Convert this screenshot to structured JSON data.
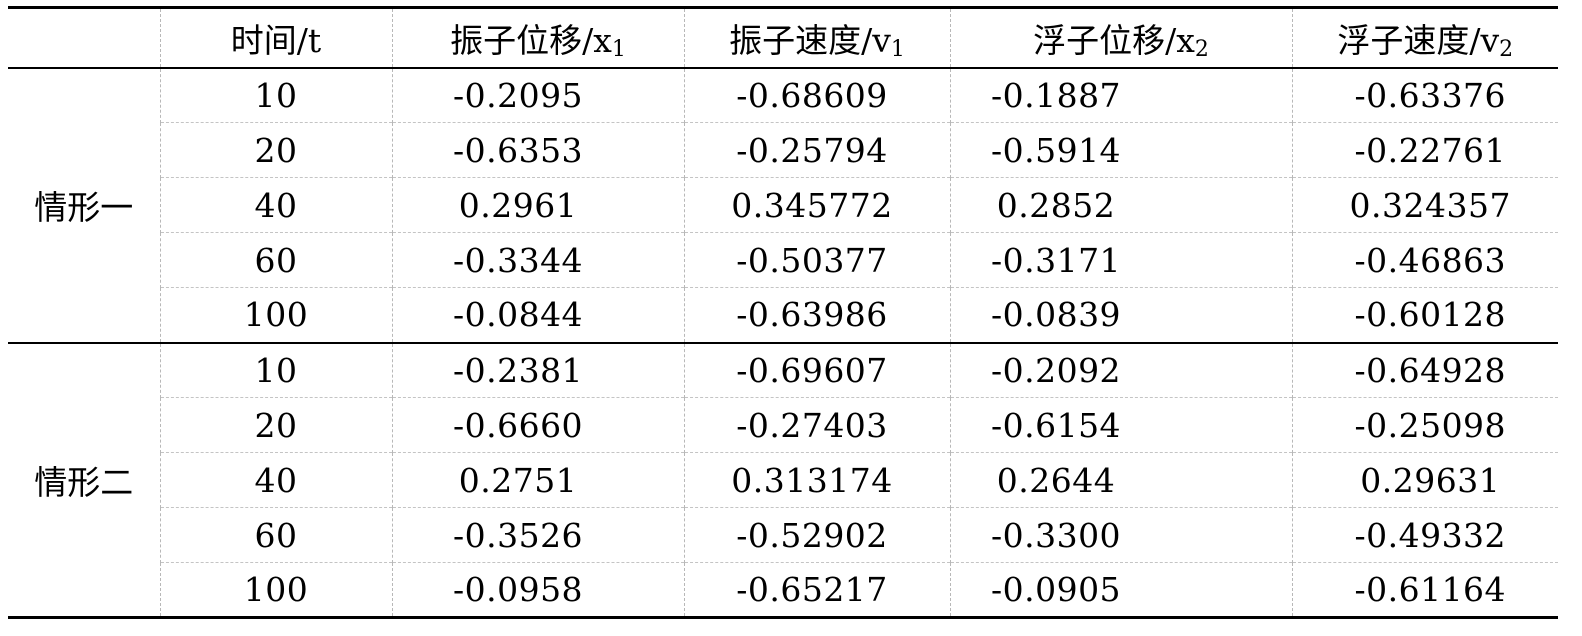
{
  "table": {
    "headers": [
      {
        "text": "",
        "sub": ""
      },
      {
        "text": "时间/t",
        "sub": ""
      },
      {
        "text": "振子位移/x",
        "sub": "1"
      },
      {
        "text": "振子速度/v",
        "sub": "1"
      },
      {
        "text": "浮子位移/x",
        "sub": "2"
      },
      {
        "text": "浮子速度/v",
        "sub": "2"
      }
    ],
    "groups": [
      {
        "label": "情形一",
        "rows": [
          [
            "10",
            "-0.2095",
            "-0.68609",
            "-0.1887",
            "-0.63376"
          ],
          [
            "20",
            "-0.6353",
            "-0.25794",
            "-0.5914",
            "-0.22761"
          ],
          [
            "40",
            "0.2961",
            "0.345772",
            "0.2852",
            "0.324357"
          ],
          [
            "60",
            "-0.3344",
            "-0.50377",
            "-0.3171",
            "-0.46863"
          ],
          [
            "100",
            "-0.0844",
            "-0.63986",
            "-0.0839",
            "-0.60128"
          ]
        ]
      },
      {
        "label": "情形二",
        "rows": [
          [
            "10",
            "-0.2381",
            "-0.69607",
            "-0.2092",
            "-0.64928"
          ],
          [
            "20",
            "-0.6660",
            "-0.27403",
            "-0.6154",
            "-0.25098"
          ],
          [
            "40",
            "0.2751",
            "0.313174",
            "0.2644",
            "0.29631"
          ],
          [
            "60",
            "-0.3526",
            "-0.52902",
            "-0.3300",
            "-0.49332"
          ],
          [
            "100",
            "-0.0958",
            "-0.65217",
            "-0.0905",
            "-0.61164"
          ]
        ]
      }
    ]
  }
}
